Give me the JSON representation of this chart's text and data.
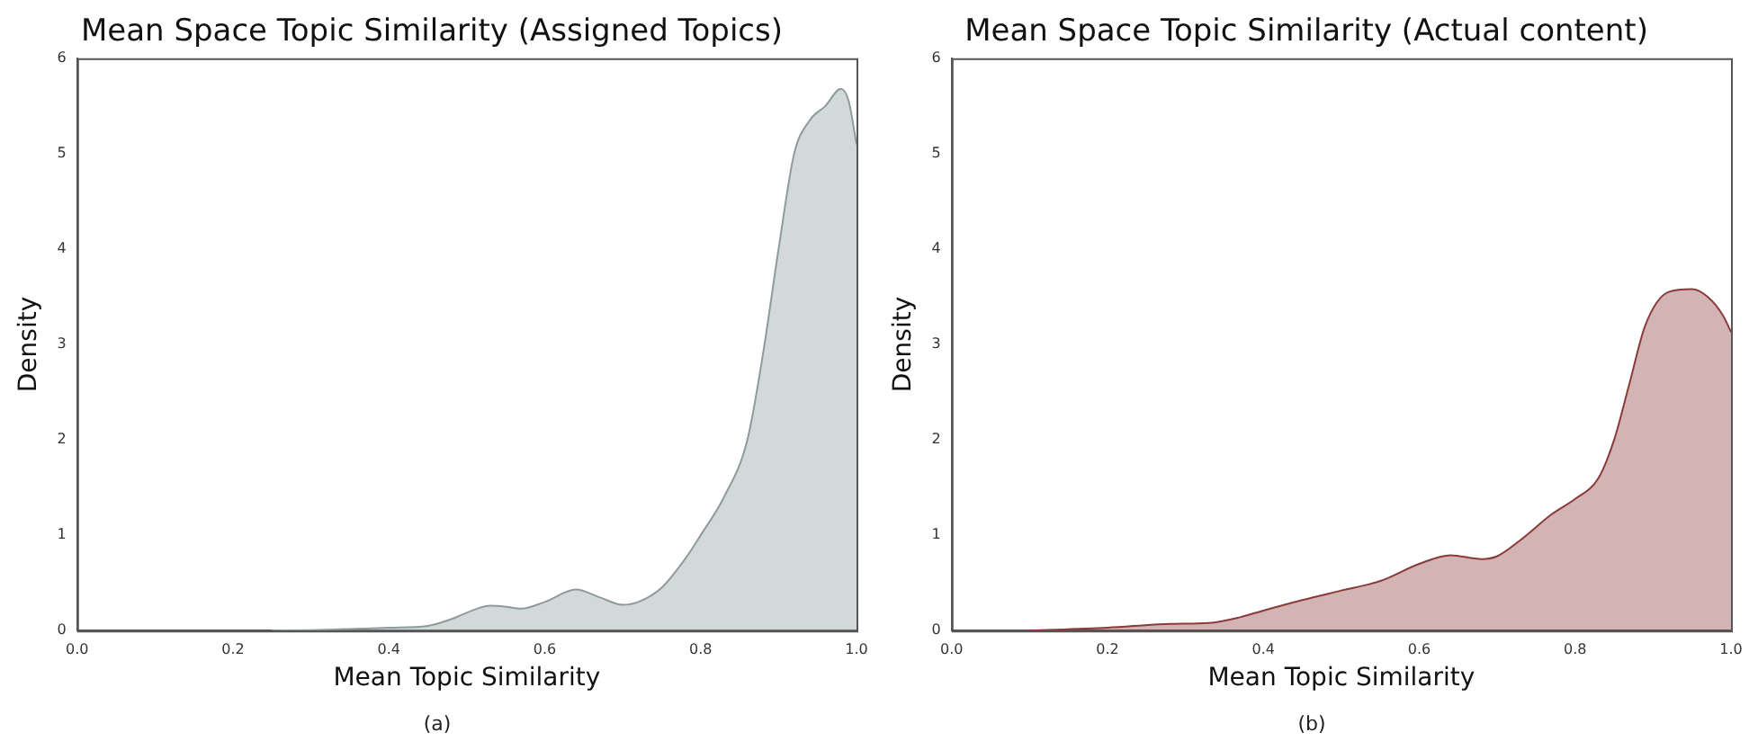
{
  "chart_data": [
    {
      "type": "area",
      "title": "Mean Space Topic Similarity (Assigned Topics)",
      "xlabel": "Mean Topic Similarity",
      "ylabel": "Density",
      "annotations": [
        "(a)"
      ],
      "series": [
        {
          "color": "#8c9c9c",
          "x": [
            0.25,
            0.3,
            0.4,
            0.45,
            0.48,
            0.51,
            0.53,
            0.55,
            0.57,
            0.6,
            0.64,
            0.67,
            0.7,
            0.72,
            0.75,
            0.78,
            0.8,
            0.83,
            0.86,
            0.88,
            0.9,
            0.92,
            0.94,
            0.96,
            0.98,
            0.99,
            1.0
          ],
          "values": [
            0,
            0.005,
            0.03,
            0.05,
            0.12,
            0.22,
            0.26,
            0.25,
            0.23,
            0.3,
            0.43,
            0.35,
            0.27,
            0.3,
            0.45,
            0.75,
            1.0,
            1.4,
            2.0,
            2.9,
            4.0,
            5.0,
            5.35,
            5.5,
            5.68,
            5.55,
            5.1
          ]
        }
      ],
      "xlim": [
        0,
        1
      ],
      "xticks": [
        {
          "value": 0,
          "label": "0.0"
        },
        {
          "value": 0.2,
          "label": "0.2"
        },
        {
          "value": 0.4,
          "label": "0.4"
        },
        {
          "value": 0.6,
          "label": "0.6"
        },
        {
          "value": 0.8,
          "label": "0.8"
        },
        {
          "value": 1,
          "label": "1.0"
        }
      ],
      "ylim": [
        0,
        6
      ],
      "yticks": [
        0,
        1,
        2,
        3,
        4,
        5,
        6
      ],
      "grid": false,
      "legend": false
    },
    {
      "type": "area",
      "title": "Mean Space Topic Similarity (Actual content)",
      "xlabel": "Mean Topic Similarity",
      "ylabel": "Density",
      "annotations": [
        "(b)"
      ],
      "series": [
        {
          "color": "#8b3a3a",
          "x": [
            0.1,
            0.2,
            0.28,
            0.33,
            0.37,
            0.4,
            0.45,
            0.5,
            0.55,
            0.6,
            0.64,
            0.68,
            0.7,
            0.73,
            0.77,
            0.8,
            0.83,
            0.85,
            0.87,
            0.89,
            0.92,
            0.95,
            0.97,
            0.99,
            1.0
          ],
          "values": [
            0,
            0.03,
            0.07,
            0.08,
            0.14,
            0.21,
            0.32,
            0.42,
            0.52,
            0.7,
            0.79,
            0.75,
            0.78,
            0.95,
            1.22,
            1.38,
            1.6,
            2.0,
            2.6,
            3.2,
            3.55,
            3.58,
            3.5,
            3.3,
            3.13
          ]
        }
      ],
      "xlim": [
        0,
        1
      ],
      "xticks": [
        {
          "value": 0,
          "label": "0.0"
        },
        {
          "value": 0.2,
          "label": "0.2"
        },
        {
          "value": 0.4,
          "label": "0.4"
        },
        {
          "value": 0.6,
          "label": "0.6"
        },
        {
          "value": 0.8,
          "label": "0.8"
        },
        {
          "value": 1,
          "label": "1.0"
        }
      ],
      "ylim": [
        0,
        6
      ],
      "yticks": [
        0,
        1,
        2,
        3,
        4,
        5,
        6
      ],
      "grid": false,
      "legend": false
    }
  ]
}
